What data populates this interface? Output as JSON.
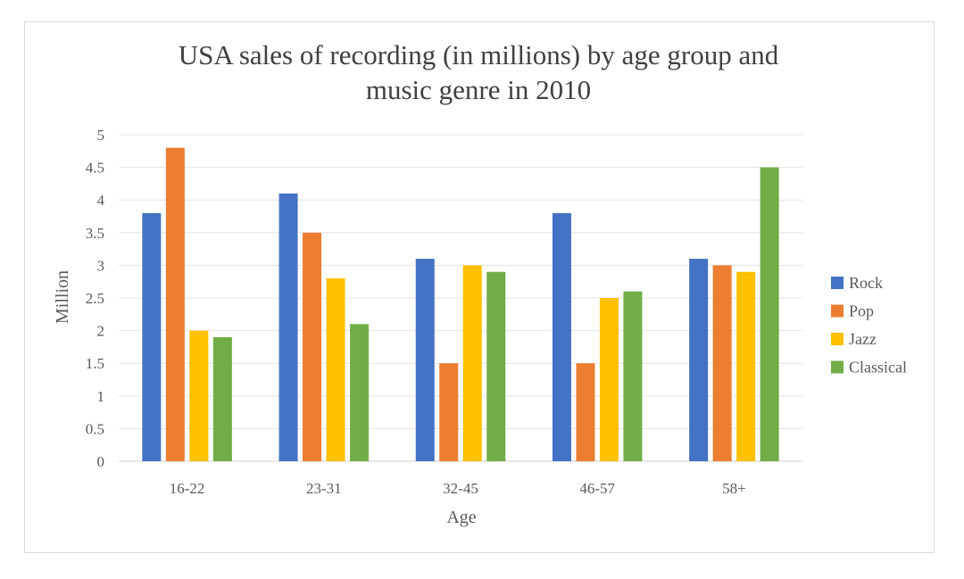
{
  "chart_data": {
    "type": "bar",
    "title": [
      "USA sales of recording (in millions) by age group and",
      "music genre in 2010"
    ],
    "xlabel": "Age",
    "ylabel": "Million",
    "categories": [
      "16-22",
      "23-31",
      "32-45",
      "46-57",
      "58+"
    ],
    "ylim": [
      0,
      5
    ],
    "yticks": [
      "0",
      "0.5",
      "1",
      "1.5",
      "2",
      "2.5",
      "3",
      "3.5",
      "4",
      "4.5",
      "5"
    ],
    "grid": true,
    "legend_position": "right",
    "series": [
      {
        "name": "Rock",
        "color": "#4472C4",
        "values": [
          3.8,
          4.1,
          3.1,
          3.8,
          3.1
        ]
      },
      {
        "name": "Pop",
        "color": "#ED7D31",
        "values": [
          4.8,
          3.5,
          1.5,
          1.5,
          3.0
        ]
      },
      {
        "name": "Jazz",
        "color": "#FFC000",
        "values": [
          2.0,
          2.8,
          3.0,
          2.5,
          2.9
        ]
      },
      {
        "name": "Classical",
        "color": "#70AD47",
        "values": [
          1.9,
          2.1,
          2.9,
          2.6,
          4.5
        ]
      }
    ]
  }
}
